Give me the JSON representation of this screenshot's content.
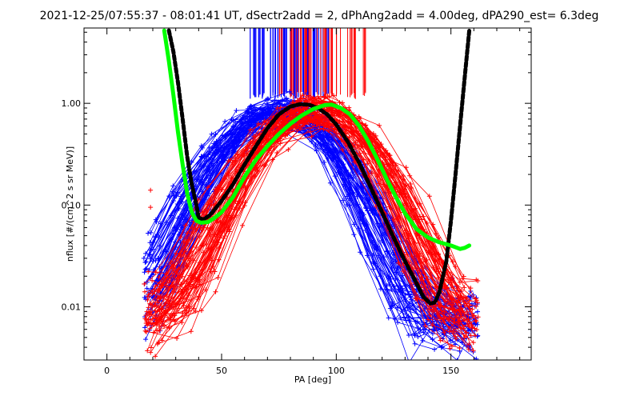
{
  "chart_data": {
    "type": "scatter",
    "title": "2021-12-25/07:55:37 - 08:01:41 UT, dSectr2add = 2, dPhAng2add = 4.00deg, dPA290_est=   6.3deg",
    "xlabel": "PA [deg]",
    "ylabel": "nflux [#/(cm^2 s sr MeV)]",
    "xlim": [
      -10,
      185
    ],
    "ylim": [
      0.003,
      5.5
    ],
    "yscale": "log",
    "x_ticks": [
      0,
      50,
      100,
      150
    ],
    "x_tick_labels": [
      "0",
      "50",
      "100",
      "150"
    ],
    "y_ticks": [
      0.01,
      0.1,
      1
    ],
    "y_tick_labels": [
      "0.01",
      "0.10",
      "1.00"
    ],
    "colors": {
      "blue": "#0000ff",
      "red": "#ff0000",
      "fit_black": "#000000",
      "fit_green": "#00ff00"
    },
    "series": [
      {
        "color": "#000000",
        "style": "dashed-thick",
        "points": [
          [
            27,
            5.2
          ],
          [
            29,
            3.2
          ],
          [
            31,
            1.6
          ],
          [
            33,
            0.7
          ],
          [
            35,
            0.3
          ],
          [
            37,
            0.16
          ],
          [
            39,
            0.1
          ],
          [
            40,
            0.075
          ],
          [
            42,
            0.072
          ],
          [
            45,
            0.08
          ],
          [
            50,
            0.11
          ],
          [
            55,
            0.16
          ],
          [
            60,
            0.25
          ],
          [
            65,
            0.38
          ],
          [
            70,
            0.57
          ],
          [
            75,
            0.78
          ],
          [
            80,
            0.93
          ],
          [
            84,
            0.98
          ],
          [
            88,
            0.97
          ],
          [
            92,
            0.9
          ],
          [
            96,
            0.78
          ],
          [
            100,
            0.62
          ],
          [
            105,
            0.42
          ],
          [
            110,
            0.26
          ],
          [
            115,
            0.15
          ],
          [
            120,
            0.085
          ],
          [
            125,
            0.048
          ],
          [
            130,
            0.028
          ],
          [
            135,
            0.017
          ],
          [
            138,
            0.0125
          ],
          [
            141,
            0.0108
          ],
          [
            143,
            0.011
          ],
          [
            145,
            0.014
          ],
          [
            148,
            0.028
          ],
          [
            150,
            0.07
          ],
          [
            152,
            0.2
          ],
          [
            154,
            0.6
          ],
          [
            156,
            1.8
          ],
          [
            158,
            5.2
          ]
        ]
      },
      {
        "color": "#00ff00",
        "style": "thick",
        "points": [
          [
            25,
            5.2
          ],
          [
            27,
            2.6
          ],
          [
            29,
            1.2
          ],
          [
            31,
            0.52
          ],
          [
            33,
            0.25
          ],
          [
            35,
            0.13
          ],
          [
            37,
            0.085
          ],
          [
            39,
            0.07
          ],
          [
            41,
            0.067
          ],
          [
            44,
            0.068
          ],
          [
            47,
            0.075
          ],
          [
            50,
            0.085
          ],
          [
            55,
            0.12
          ],
          [
            60,
            0.19
          ],
          [
            65,
            0.28
          ],
          [
            70,
            0.38
          ],
          [
            75,
            0.5
          ],
          [
            80,
            0.63
          ],
          [
            85,
            0.76
          ],
          [
            90,
            0.88
          ],
          [
            95,
            0.96
          ],
          [
            98,
            0.97
          ],
          [
            102,
            0.9
          ],
          [
            106,
            0.78
          ],
          [
            110,
            0.6
          ],
          [
            114,
            0.42
          ],
          [
            118,
            0.28
          ],
          [
            122,
            0.18
          ],
          [
            126,
            0.12
          ],
          [
            130,
            0.083
          ],
          [
            135,
            0.058
          ],
          [
            140,
            0.048
          ],
          [
            145,
            0.043
          ],
          [
            150,
            0.04
          ],
          [
            154,
            0.037
          ],
          [
            156,
            0.038
          ],
          [
            158,
            0.04
          ]
        ]
      }
    ]
  }
}
